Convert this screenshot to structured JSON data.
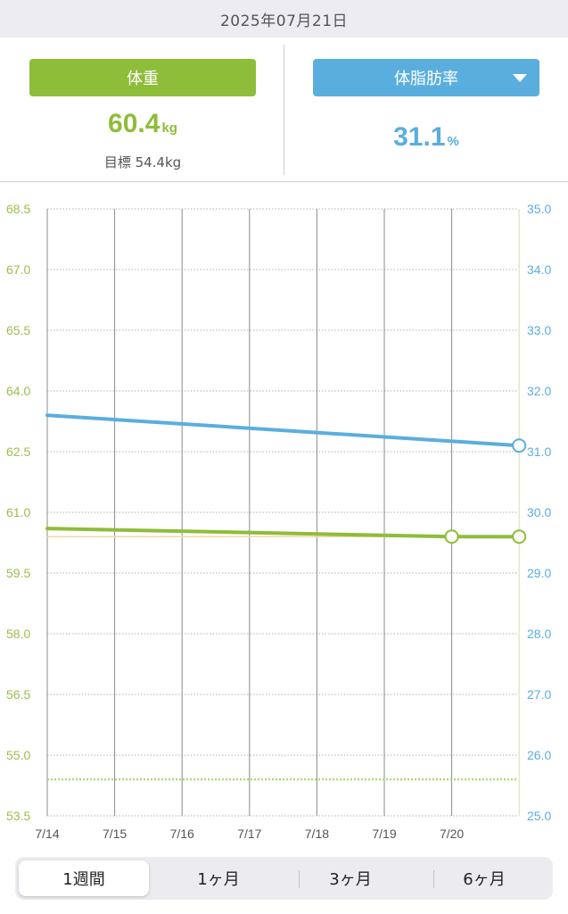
{
  "date": "2025年07月21日",
  "weight": {
    "button_label": "体重",
    "value": "60.4",
    "unit": "kg",
    "target_label": "目標 54.4kg",
    "color": "#8ebd3a"
  },
  "body_fat": {
    "button_label": "体脂肪率",
    "value": "31.1",
    "unit": "%",
    "dropdown_icon": "triangle-down-icon",
    "color": "#5aaede"
  },
  "chart_data": {
    "type": "line",
    "x": [
      "7/14",
      "7/15",
      "7/16",
      "7/17",
      "7/18",
      "7/19",
      "7/20",
      "7/21"
    ],
    "x_tick_labels": [
      "7/14",
      "7/15",
      "7/16",
      "7/17",
      "7/18",
      "7/19",
      "7/20"
    ],
    "y_left": {
      "ticks": [
        "68.5",
        "67.0",
        "65.5",
        "64.0",
        "62.5",
        "61.0",
        "59.5",
        "58.0",
        "56.5",
        "55.0",
        "53.5"
      ],
      "range": [
        53.5,
        68.5
      ],
      "color": "#9bbf4a"
    },
    "y_right": {
      "ticks": [
        "35.0",
        "34.0",
        "33.0",
        "32.0",
        "31.0",
        "30.0",
        "29.0",
        "28.0",
        "27.0",
        "26.0",
        "25.0"
      ],
      "range": [
        25.0,
        35.0
      ],
      "color": "#5aaede"
    },
    "series": [
      {
        "axis": "left",
        "color": "#8ebd3a",
        "points": [
          [
            0,
            60.6
          ],
          [
            6,
            60.4
          ],
          [
            7,
            60.4
          ]
        ],
        "markers": [
          6,
          7
        ]
      },
      {
        "axis": "right",
        "color": "#5aaede",
        "points": [
          [
            0,
            31.6
          ],
          [
            7,
            31.1
          ]
        ],
        "markers": [
          7
        ]
      }
    ],
    "target_line": {
      "axis": "left",
      "value": 54.4,
      "color": "#a8cf60"
    },
    "reference_line": {
      "axis": "left",
      "value": 60.4,
      "color": "#f2d9a6"
    },
    "grid": true
  },
  "periods": {
    "items": [
      "1週間",
      "1ヶ月",
      "3ヶ月",
      "6ヶ月"
    ],
    "selected": "1週間"
  }
}
